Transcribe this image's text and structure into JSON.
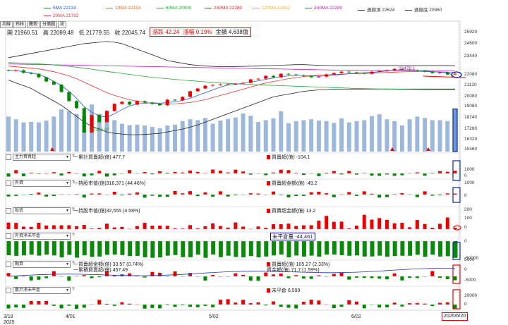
{
  "legend": [
    {
      "label": "5MA 22133",
      "color": "#2255dd"
    },
    {
      "label": "10MA 22153",
      "color": "#dd6622"
    },
    {
      "label": "60MA 20900",
      "color": "#22aa33"
    },
    {
      "label": "240MA 22280",
      "color": "#ee2222"
    },
    {
      "label": "120MA 21932",
      "color": "#e8b030"
    },
    {
      "label": "240MA 22280",
      "color": "#bb22bb"
    },
    {
      "label": "週線頂 22624",
      "color": "#333333"
    },
    {
      "label": "週線底 20960",
      "color": "#333333"
    },
    {
      "label": "20MA 21792",
      "color": "#ee3333"
    }
  ],
  "tabs": [
    "均線",
    "布林",
    "騰勢",
    "分價圖",
    "設"
  ],
  "ohlc": {
    "open": "開 21960.51",
    "high": "高 22089.48",
    "low": "低 21779.55",
    "close": "收 22045.74"
  },
  "change": {
    "amount": "漲跌 42.24",
    "pct": "漲幅 0.19%",
    "value": "金額 4,638億"
  },
  "price_axis": {
    "ticks": [
      "25920",
      "24600",
      "23440",
      "22080",
      "21120",
      "20080",
      "19080",
      "18240",
      "17280",
      "16320",
      "15360"
    ]
  },
  "annotations": {
    "peak": "22470.1",
    "trough": "17306.97"
  },
  "panels": [
    {
      "selector": "主力買賣超",
      "q": "?",
      "left": "一累計買賣超(億) 477.7",
      "right": "買賣超(億) -104.1",
      "right_color": "red",
      "ticks": [
        "1000",
        "0"
      ]
    },
    {
      "selector": "外資",
      "q": "?",
      "left": "一持股市值(億)316,371 (44.46%)",
      "right": "買賣超金額(億) -49.2",
      "right_color": "red",
      "ticks": [
        "1000",
        "0"
      ]
    },
    {
      "selector": "投信",
      "q": "?",
      "left": "一持股市值(億)32,555 (4.58%)",
      "right": "買賣超金額(億) 13.2",
      "right_color": "red",
      "ticks": [
        "200",
        "100",
        "0"
      ]
    },
    {
      "selector": "外資淨未平倉",
      "q": "?",
      "left": "",
      "right": "未平倉量 -44,461",
      "right_color": "green",
      "ticks": [
        "0",
        "-50000"
      ]
    },
    {
      "selector": "融資",
      "q": "?",
      "left": "一買賣超金額(億) 33.57 (0.74%)",
      "left2": "一累積買賣超(億) 457.49",
      "right": "買賣超(億) 105.27 (2.33%)",
      "right2": "資金額(億) 71.7 (1.59%)",
      "right_color": "red",
      "ticks": [
        "5000",
        "0",
        "-5000"
      ]
    },
    {
      "selector": "散戶淨未平倉",
      "q": "?",
      "left": "",
      "right": "未平倉 6,599",
      "right_color": "red",
      "ticks": [
        "20000",
        "0"
      ]
    }
  ],
  "x_labels": [
    "3/19",
    "2025",
    "4/01",
    "5/02",
    "6/02",
    "2025/6/20"
  ],
  "chart_data": {
    "type": "candlestick",
    "dates_marked": [
      "3/19",
      "4/01",
      "5/02",
      "6/02",
      "2025/6/20"
    ],
    "close": [
      22270,
      22300,
      22120,
      22050,
      21800,
      21500,
      21280,
      20750,
      20100,
      19600,
      17860,
      19100,
      18600,
      19400,
      19900,
      20050,
      19850,
      20100,
      20000,
      19900,
      19800,
      20200,
      20150,
      20400,
      20800,
      21000,
      21200,
      21250,
      21300,
      21300,
      21350,
      21400,
      21650,
      21700,
      21900,
      21800,
      22050,
      22000,
      21950,
      21900,
      21800,
      21850,
      22000,
      22100,
      22200,
      22150,
      22100,
      22050,
      22200,
      22250,
      22300,
      22400,
      22350,
      22300,
      22280,
      22200,
      22100,
      22150,
      22000,
      22046
    ],
    "volume": [
      7.8,
      7.2,
      6.5,
      6.6,
      6.5,
      6.9,
      7.8,
      9.4,
      9.0,
      8.4,
      7.8,
      10.5,
      8.4,
      8.2,
      7.0,
      6.2,
      5.9,
      6.0,
      5.8,
      5.5,
      5.2,
      5.8,
      6.0,
      6.8,
      7.2,
      7.0,
      7.5,
      6.2,
      6.9,
      7.3,
      7.6,
      8.5,
      8.0,
      6.6,
      7.0,
      7.4,
      9.0,
      6.3,
      6.8,
      7.0,
      7.2,
      6.9,
      6.8,
      6.4,
      7.4,
      6.5,
      6.8,
      7.0,
      7.9,
      8.3,
      7.2,
      6.8,
      5.8,
      7.2,
      7.8,
      7.5,
      7.0,
      7.0,
      6.8,
      9.5
    ],
    "ma5": [
      22300,
      22280,
      22200,
      22120,
      22000,
      21800,
      21500,
      21200,
      20800,
      20300,
      19700,
      19300,
      19050,
      18950,
      19200,
      19500,
      19750,
      19900,
      19950,
      19980,
      19950,
      20000,
      20050,
      20150,
      20300,
      20500,
      20700,
      20900,
      21100,
      21250,
      21300,
      21380,
      21450,
      21550,
      21650,
      21750,
      21850,
      21900,
      21950,
      21930,
      21900,
      21880,
      21900,
      21950,
      22000,
      22050,
      22100,
      22120,
      22150,
      22200,
      22250,
      22300,
      22320,
      22330,
      22300,
      22250,
      22200,
      22170,
      22150,
      22133
    ],
    "ma20": [
      22600,
      22550,
      22500,
      22450,
      22400,
      22300,
      22200,
      22050,
      21900,
      21700,
      21450,
      21200,
      20950,
      20700,
      20500,
      20350,
      20200,
      20100,
      20000,
      19950,
      19900,
      19880,
      19900,
      19950,
      20000,
      20100,
      20200,
      20350,
      20500,
      20650,
      20800,
      20950,
      21100,
      21250,
      21400,
      21500,
      21600,
      21700,
      21780,
      21850,
      21900,
      21950,
      21980,
      22000,
      22020,
      22050,
      22070,
      22080,
      22100,
      22120,
      22150,
      22170,
      22190,
      22200,
      22210,
      22210,
      22200,
      22190,
      22180,
      21792
    ],
    "ma60": [
      22850,
      22830,
      22800,
      22780,
      22750,
      22720,
      22680,
      22630,
      22580,
      22520,
      22450,
      22380,
      22300,
      22220,
      22150,
      22080,
      22000,
      21930,
      21860,
      21800,
      21750,
      21700,
      21650,
      21600,
      21560,
      21520,
      21480,
      21440,
      21400,
      21370,
      21340,
      21310,
      21290,
      21260,
      21240,
      21220,
      21200,
      21180,
      21160,
      21140,
      21120,
      21100,
      21080,
      21060,
      21040,
      21020,
      21000,
      20990,
      20980,
      20970,
      20960,
      20950,
      20940,
      20930,
      20920,
      20915,
      20910,
      20905,
      20902,
      20900
    ],
    "ma240": [
      22750,
      22740,
      22730,
      22720,
      22710,
      22700,
      22690,
      22680,
      22670,
      22660,
      22650,
      22640,
      22630,
      22620,
      22610,
      22600,
      22590,
      22580,
      22570,
      22560,
      22550,
      22540,
      22530,
      22520,
      22510,
      22500,
      22490,
      22480,
      22470,
      22460,
      22450,
      22440,
      22430,
      22420,
      22410,
      22400,
      22390,
      22380,
      22370,
      22360,
      22350,
      22340,
      22330,
      22320,
      22310,
      22300,
      22300,
      22295,
      22290,
      22290,
      22285,
      22285,
      22282,
      22282,
      22281,
      22281,
      22280,
      22280,
      22280,
      22280
    ],
    "band_top": [
      23200,
      23300,
      23400,
      23500,
      23600,
      23700,
      23800,
      23900,
      24000,
      24100,
      24200,
      24250,
      24300,
      24350,
      24300,
      24200,
      24000,
      23800,
      23600,
      23400,
      23200,
      23000,
      22900,
      22800,
      22700,
      22650,
      22600,
      22580,
      22560,
      22560,
      22570,
      22580,
      22590,
      22600,
      22620,
      22640,
      22660,
      22680,
      22700,
      22700,
      22680,
      22650,
      22640,
      22630,
      22624,
      22624,
      22624,
      22624,
      22624,
      22624,
      22624,
      22624,
      22624,
      22624,
      22624,
      22624,
      22624,
      22624,
      22624,
      22624
    ],
    "band_bot": [
      21600,
      21400,
      21200,
      21000,
      20700,
      20400,
      20100,
      19800,
      19400,
      19000,
      18600,
      18300,
      18100,
      17900,
      17800,
      17750,
      17700,
      17700,
      17720,
      17760,
      17800,
      17900,
      18000,
      18100,
      18250,
      18400,
      18600,
      18800,
      19000,
      19200,
      19400,
      19600,
      19800,
      20000,
      20200,
      20400,
      20500,
      20600,
      20700,
      20800,
      20850,
      20900,
      20920,
      20940,
      20950,
      20955,
      20958,
      20960,
      20960,
      20960,
      20960,
      20960,
      20960,
      20960,
      20960,
      20960,
      20960,
      20960,
      20960,
      20960
    ],
    "ylim": [
      15360,
      25920
    ],
    "major_up": [
      0,
      0,
      0,
      0,
      0,
      0,
      0,
      0,
      0,
      0,
      0,
      1,
      0,
      1,
      1,
      1,
      0,
      1,
      0,
      0,
      0,
      1,
      0,
      1,
      1,
      1,
      1,
      1,
      1,
      0,
      1,
      1,
      1,
      1,
      1,
      0,
      1,
      0,
      0,
      0,
      0,
      1,
      1,
      1,
      1,
      0,
      0,
      0,
      1,
      1,
      1,
      1,
      0,
      0,
      0,
      0,
      0,
      1,
      0,
      1
    ]
  }
}
